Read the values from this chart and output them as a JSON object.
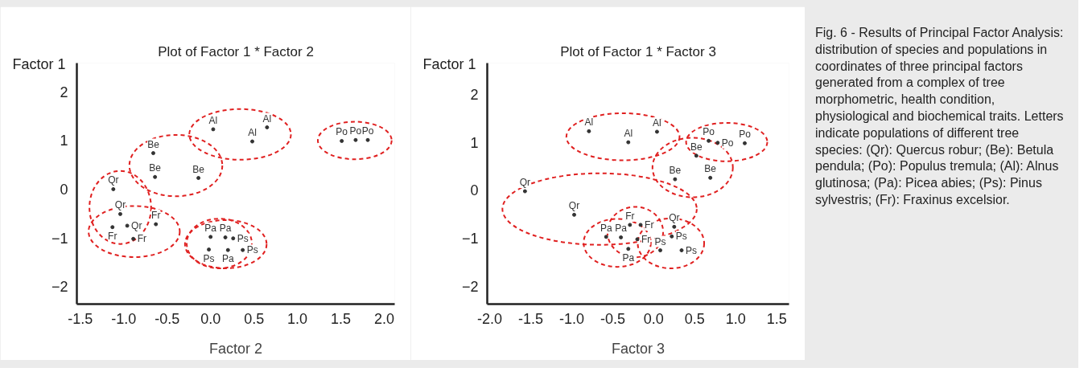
{
  "chart_data": [
    {
      "type": "scatter",
      "title": "Plot of Factor 1 * Factor 2",
      "xlabel": "Factor 2",
      "ylabel": "Factor 1",
      "xlim": [
        -1.54,
        2.12
      ],
      "ylim": [
        -2.36,
        2.59
      ],
      "xticks": [
        {
          "value": -1.5,
          "label": "-1.5"
        },
        {
          "value": -1,
          "label": "-1.0"
        },
        {
          "value": -0.5,
          "label": "-0.5"
        },
        {
          "value": 0,
          "label": "0.0"
        },
        {
          "value": 0.5,
          "label": "0.5"
        },
        {
          "value": 1,
          "label": "1.0"
        },
        {
          "value": 1.5,
          "label": "1.5"
        },
        {
          "value": 2,
          "label": "2.0"
        }
      ],
      "yticks": [
        -2,
        -1,
        0,
        1,
        2
      ],
      "grid": false,
      "legend": false,
      "marker": "circle",
      "series": [
        {
          "name": "Al",
          "color": "#333333",
          "x": [
            0.03,
            0.65,
            0.48
          ],
          "values": [
            1.23,
            1.27,
            0.98
          ]
        },
        {
          "name": "Po",
          "color": "#333333",
          "x": [
            1.51,
            1.67,
            1.81
          ],
          "values": [
            0.99,
            1.01,
            1.01
          ]
        },
        {
          "name": "Be",
          "color": "#333333",
          "x": [
            -0.66,
            -0.64,
            -0.14
          ],
          "values": [
            0.74,
            0.25,
            0.23
          ]
        },
        {
          "name": "Qr",
          "color": "#333333",
          "x": [
            -1.12,
            -1.04,
            -0.96
          ],
          "values": [
            0.0,
            -0.51,
            -0.75
          ]
        },
        {
          "name": "Fr",
          "color": "#333333",
          "x": [
            -1.13,
            -0.63,
            -0.89
          ],
          "values": [
            -0.78,
            -0.72,
            -1.02
          ]
        },
        {
          "name": "Pa",
          "color": "#333333",
          "x": [
            0.0,
            0.17,
            0.2
          ],
          "values": [
            -0.98,
            -0.99,
            -1.25
          ]
        },
        {
          "name": "Ps",
          "color": "#333333",
          "x": [
            0.26,
            -0.02,
            0.37
          ],
          "values": [
            -1.01,
            -1.24,
            -1.25
          ]
        }
      ]
    },
    {
      "type": "scatter",
      "title": "Plot of Factor 1 * Factor 3",
      "xlabel": "Factor 3",
      "ylabel": "Factor 1",
      "xlim": [
        -2.03,
        1.65
      ],
      "ylim": [
        -2.37,
        2.65
      ],
      "xticks": [
        {
          "value": -2,
          "label": "-2.0"
        },
        {
          "value": -1.5,
          "label": "-1.5"
        },
        {
          "value": -1,
          "label": "-1.0"
        },
        {
          "value": -0.5,
          "label": "-0.5"
        },
        {
          "value": 0,
          "label": "0.0"
        },
        {
          "value": 0.5,
          "label": "0.5"
        },
        {
          "value": 1,
          "label": "1.0"
        },
        {
          "value": 1.5,
          "label": "1.5"
        }
      ],
      "yticks": [
        -2,
        -1,
        0,
        1,
        2
      ],
      "grid": false,
      "legend": false,
      "marker": "circle",
      "series": [
        {
          "name": "Al",
          "color": "#333333",
          "x": [
            -0.79,
            -0.31,
            0.04
          ],
          "values": [
            1.23,
            1.0,
            1.22
          ]
        },
        {
          "name": "Po",
          "color": "#333333",
          "x": [
            0.67,
            0.78,
            1.11
          ],
          "values": [
            1.03,
            0.99,
            0.98
          ]
        },
        {
          "name": "Be",
          "color": "#333333",
          "x": [
            0.52,
            0.26,
            0.69
          ],
          "values": [
            0.72,
            0.23,
            0.26
          ]
        },
        {
          "name": "Qr",
          "color": "#333333",
          "x": [
            -1.57,
            -0.97,
            0.25
          ],
          "values": [
            -0.02,
            -0.51,
            -0.76
          ]
        },
        {
          "name": "Fr",
          "color": "#333333",
          "x": [
            -0.29,
            -0.16,
            -0.2
          ],
          "values": [
            -0.72,
            -0.72,
            -1.02
          ]
        },
        {
          "name": "Pa",
          "color": "#333333",
          "x": [
            -0.58,
            -0.4,
            -0.31
          ],
          "values": [
            -0.97,
            -0.98,
            -1.22
          ]
        },
        {
          "name": "Ps",
          "color": "#333333",
          "x": [
            0.22,
            0.08,
            0.34
          ],
          "values": [
            -0.96,
            -1.25,
            -1.25
          ]
        }
      ]
    },
    {
      "type": "other",
      "annotations": [
        "Fig. 6 - Results of Principal Factor Analysis: distribution of species and populations in coordinates of three principal factors generated from a complex of tree morphometric, health condition, physiological and biochemical traits. Letters indicate populations of different tree species: (Qr): Quercus robur; (Be): Betula pendula; (Po): Populus tremula; (Al): Alnus glutinosa; (Pa): Picea abies; (Ps): Pinus sylvestris; (Fr): Fraxinus excelsior."
      ]
    }
  ]
}
